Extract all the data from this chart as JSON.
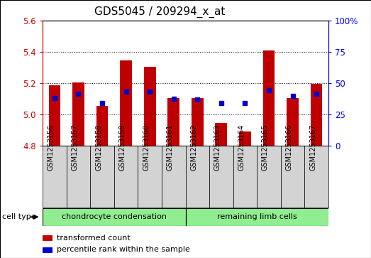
{
  "title": "GDS5045 / 209294_x_at",
  "categories": [
    "GSM1253156",
    "GSM1253157",
    "GSM1253158",
    "GSM1253159",
    "GSM1253160",
    "GSM1253161",
    "GSM1253162",
    "GSM1253163",
    "GSM1253164",
    "GSM1253165",
    "GSM1253166",
    "GSM1253167"
  ],
  "bar_values": [
    5.185,
    5.205,
    5.055,
    5.345,
    5.305,
    5.105,
    5.105,
    4.945,
    4.89,
    5.41,
    5.105,
    5.195
  ],
  "blue_dot_values": [
    5.105,
    5.13,
    5.075,
    5.145,
    5.145,
    5.1,
    5.095,
    5.075,
    5.075,
    5.155,
    5.12,
    5.13
  ],
  "baseline": 4.8,
  "ylim_left": [
    4.8,
    5.6
  ],
  "ylim_right": [
    0,
    100
  ],
  "yticks_left": [
    4.8,
    5.0,
    5.2,
    5.4,
    5.6
  ],
  "yticks_right": [
    0,
    25,
    50,
    75,
    100
  ],
  "ytick_labels_right": [
    "0",
    "25",
    "50",
    "75",
    "100%"
  ],
  "bar_color": "#c00000",
  "dot_color": "#0000cc",
  "group1_label": "chondrocyte condensation",
  "group2_label": "remaining limb cells",
  "group1_color": "#90ee90",
  "group2_color": "#90ee90",
  "cell_type_label": "cell type",
  "legend_bar_label": "transformed count",
  "legend_dot_label": "percentile rank within the sample",
  "bar_width": 0.5,
  "title_fontsize": 11
}
